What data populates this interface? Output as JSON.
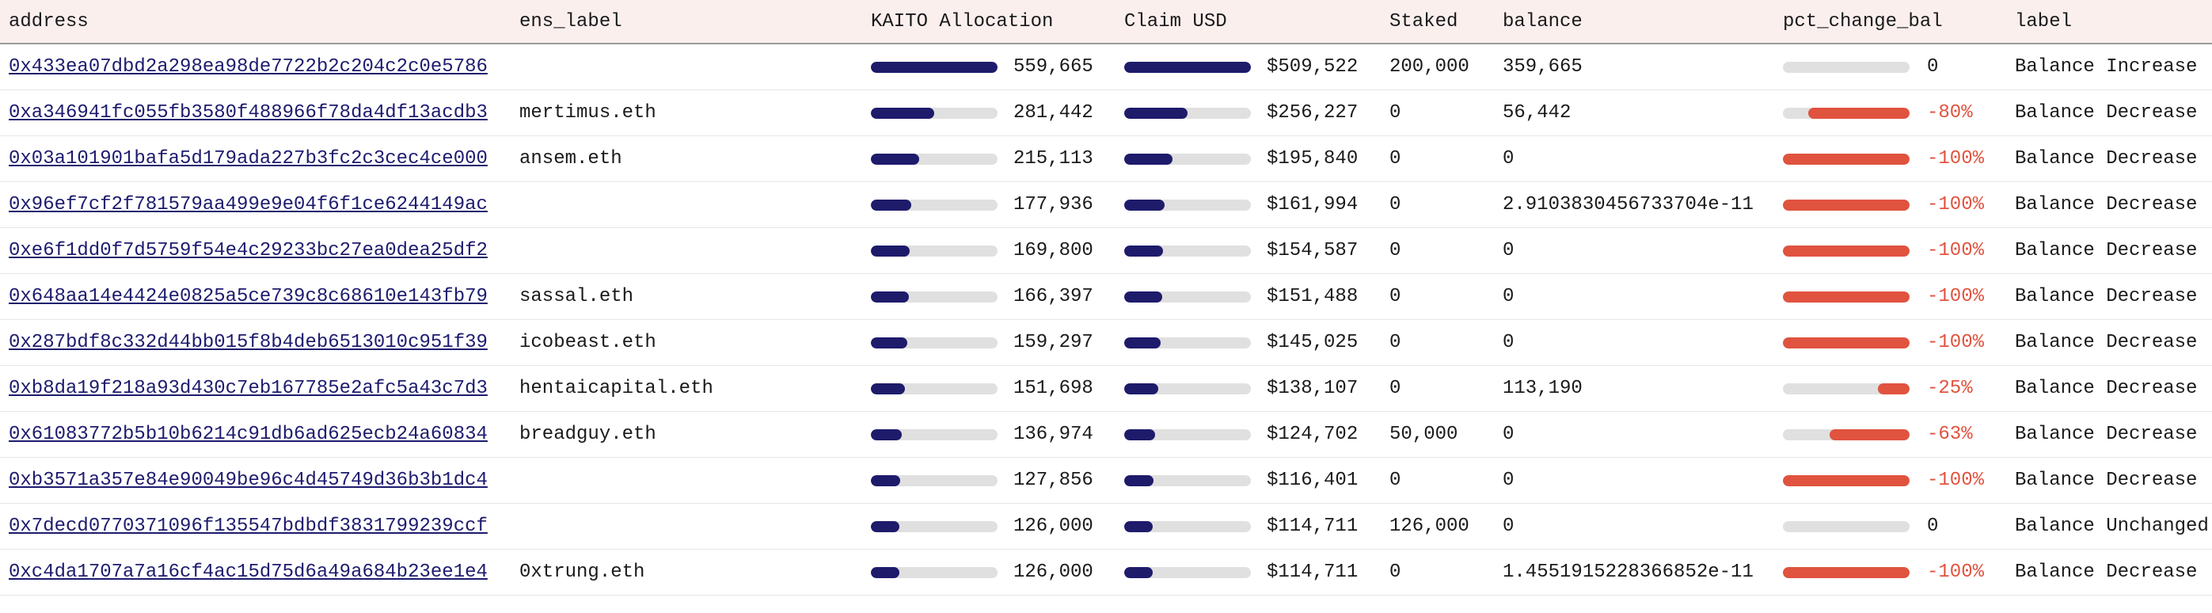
{
  "table": {
    "columns": [
      "address",
      "ens_label",
      "KAITO Allocation",
      "Claim USD",
      "Staked",
      "balance",
      "pct_change_bal",
      "label"
    ],
    "rows": [
      {
        "address": "0x433ea07dbd2a298ea98de7722b2c204c2c0e5786",
        "ens_label": null,
        "kaito": {
          "value": 559665,
          "label": "559,665"
        },
        "claim_usd": {
          "value": 509522,
          "label": "$509,522"
        },
        "staked": "200,000",
        "balance": "359,665",
        "pct_change_bal": {
          "value": 0,
          "label": "0"
        },
        "label": "Balance Increase"
      },
      {
        "address": "0xa346941fc055fb3580f488966f78da4df13acdb3",
        "ens_label": "mertimus.eth",
        "kaito": {
          "value": 281442,
          "label": "281,442"
        },
        "claim_usd": {
          "value": 256227,
          "label": "$256,227"
        },
        "staked": "0",
        "balance": "56,442",
        "pct_change_bal": {
          "value": -80,
          "label": "-80%"
        },
        "label": "Balance Decrease"
      },
      {
        "address": "0x03a101901bafa5d179ada227b3fc2c3cec4ce000",
        "ens_label": "ansem.eth",
        "kaito": {
          "value": 215113,
          "label": "215,113"
        },
        "claim_usd": {
          "value": 195840,
          "label": "$195,840"
        },
        "staked": "0",
        "balance": "0",
        "pct_change_bal": {
          "value": -100,
          "label": "-100%"
        },
        "label": "Balance Decrease"
      },
      {
        "address": "0x96ef7cf2f781579aa499e9e04f6f1ce6244149ac",
        "ens_label": null,
        "kaito": {
          "value": 177936,
          "label": "177,936"
        },
        "claim_usd": {
          "value": 161994,
          "label": "$161,994"
        },
        "staked": "0",
        "balance": "2.9103830456733704e-11",
        "pct_change_bal": {
          "value": -100,
          "label": "-100%"
        },
        "label": "Balance Decrease"
      },
      {
        "address": "0xe6f1dd0f7d5759f54e4c29233bc27ea0dea25df2",
        "ens_label": null,
        "kaito": {
          "value": 169800,
          "label": "169,800"
        },
        "claim_usd": {
          "value": 154587,
          "label": "$154,587"
        },
        "staked": "0",
        "balance": "0",
        "pct_change_bal": {
          "value": -100,
          "label": "-100%"
        },
        "label": "Balance Decrease"
      },
      {
        "address": "0x648aa14e4424e0825a5ce739c8c68610e143fb79",
        "ens_label": "sassal.eth",
        "kaito": {
          "value": 166397,
          "label": "166,397"
        },
        "claim_usd": {
          "value": 151488,
          "label": "$151,488"
        },
        "staked": "0",
        "balance": "0",
        "pct_change_bal": {
          "value": -100,
          "label": "-100%"
        },
        "label": "Balance Decrease"
      },
      {
        "address": "0x287bdf8c332d44bb015f8b4deb6513010c951f39",
        "ens_label": "icobeast.eth",
        "kaito": {
          "value": 159297,
          "label": "159,297"
        },
        "claim_usd": {
          "value": 145025,
          "label": "$145,025"
        },
        "staked": "0",
        "balance": "0",
        "pct_change_bal": {
          "value": -100,
          "label": "-100%"
        },
        "label": "Balance Decrease"
      },
      {
        "address": "0xb8da19f218a93d430c7eb167785e2afc5a43c7d3",
        "ens_label": "hentaicapital.eth",
        "kaito": {
          "value": 151698,
          "label": "151,698"
        },
        "claim_usd": {
          "value": 138107,
          "label": "$138,107"
        },
        "staked": "0",
        "balance": "113,190",
        "pct_change_bal": {
          "value": -25,
          "label": "-25%"
        },
        "label": "Balance Decrease"
      },
      {
        "address": "0x61083772b5b10b6214c91db6ad625ecb24a60834",
        "ens_label": "breadguy.eth",
        "kaito": {
          "value": 136974,
          "label": "136,974"
        },
        "claim_usd": {
          "value": 124702,
          "label": "$124,702"
        },
        "staked": "50,000",
        "balance": "0",
        "pct_change_bal": {
          "value": -63,
          "label": "-63%"
        },
        "label": "Balance Decrease"
      },
      {
        "address": "0xb3571a357e84e90049be96c4d45749d36b3b1dc4",
        "ens_label": null,
        "kaito": {
          "value": 127856,
          "label": "127,856"
        },
        "claim_usd": {
          "value": 116401,
          "label": "$116,401"
        },
        "staked": "0",
        "balance": "0",
        "pct_change_bal": {
          "value": -100,
          "label": "-100%"
        },
        "label": "Balance Decrease"
      },
      {
        "address": "0x7decd0770371096f135547bdbdf3831799239ccf",
        "ens_label": null,
        "kaito": {
          "value": 126000,
          "label": "126,000"
        },
        "claim_usd": {
          "value": 114711,
          "label": "$114,711"
        },
        "staked": "126,000",
        "balance": "0",
        "pct_change_bal": {
          "value": 0,
          "label": "0"
        },
        "label": "Balance Unchanged"
      },
      {
        "address": "0xc4da1707a7a16cf4ac15d75d6a49a684b23ee1e4",
        "ens_label": "0xtrung.eth",
        "kaito": {
          "value": 126000,
          "label": "126,000"
        },
        "claim_usd": {
          "value": 114711,
          "label": "$114,711"
        },
        "staked": "0",
        "balance": "1.4551915228366852e-11",
        "pct_change_bal": {
          "value": -100,
          "label": "-100%"
        },
        "label": "Balance Decrease"
      }
    ]
  }
}
